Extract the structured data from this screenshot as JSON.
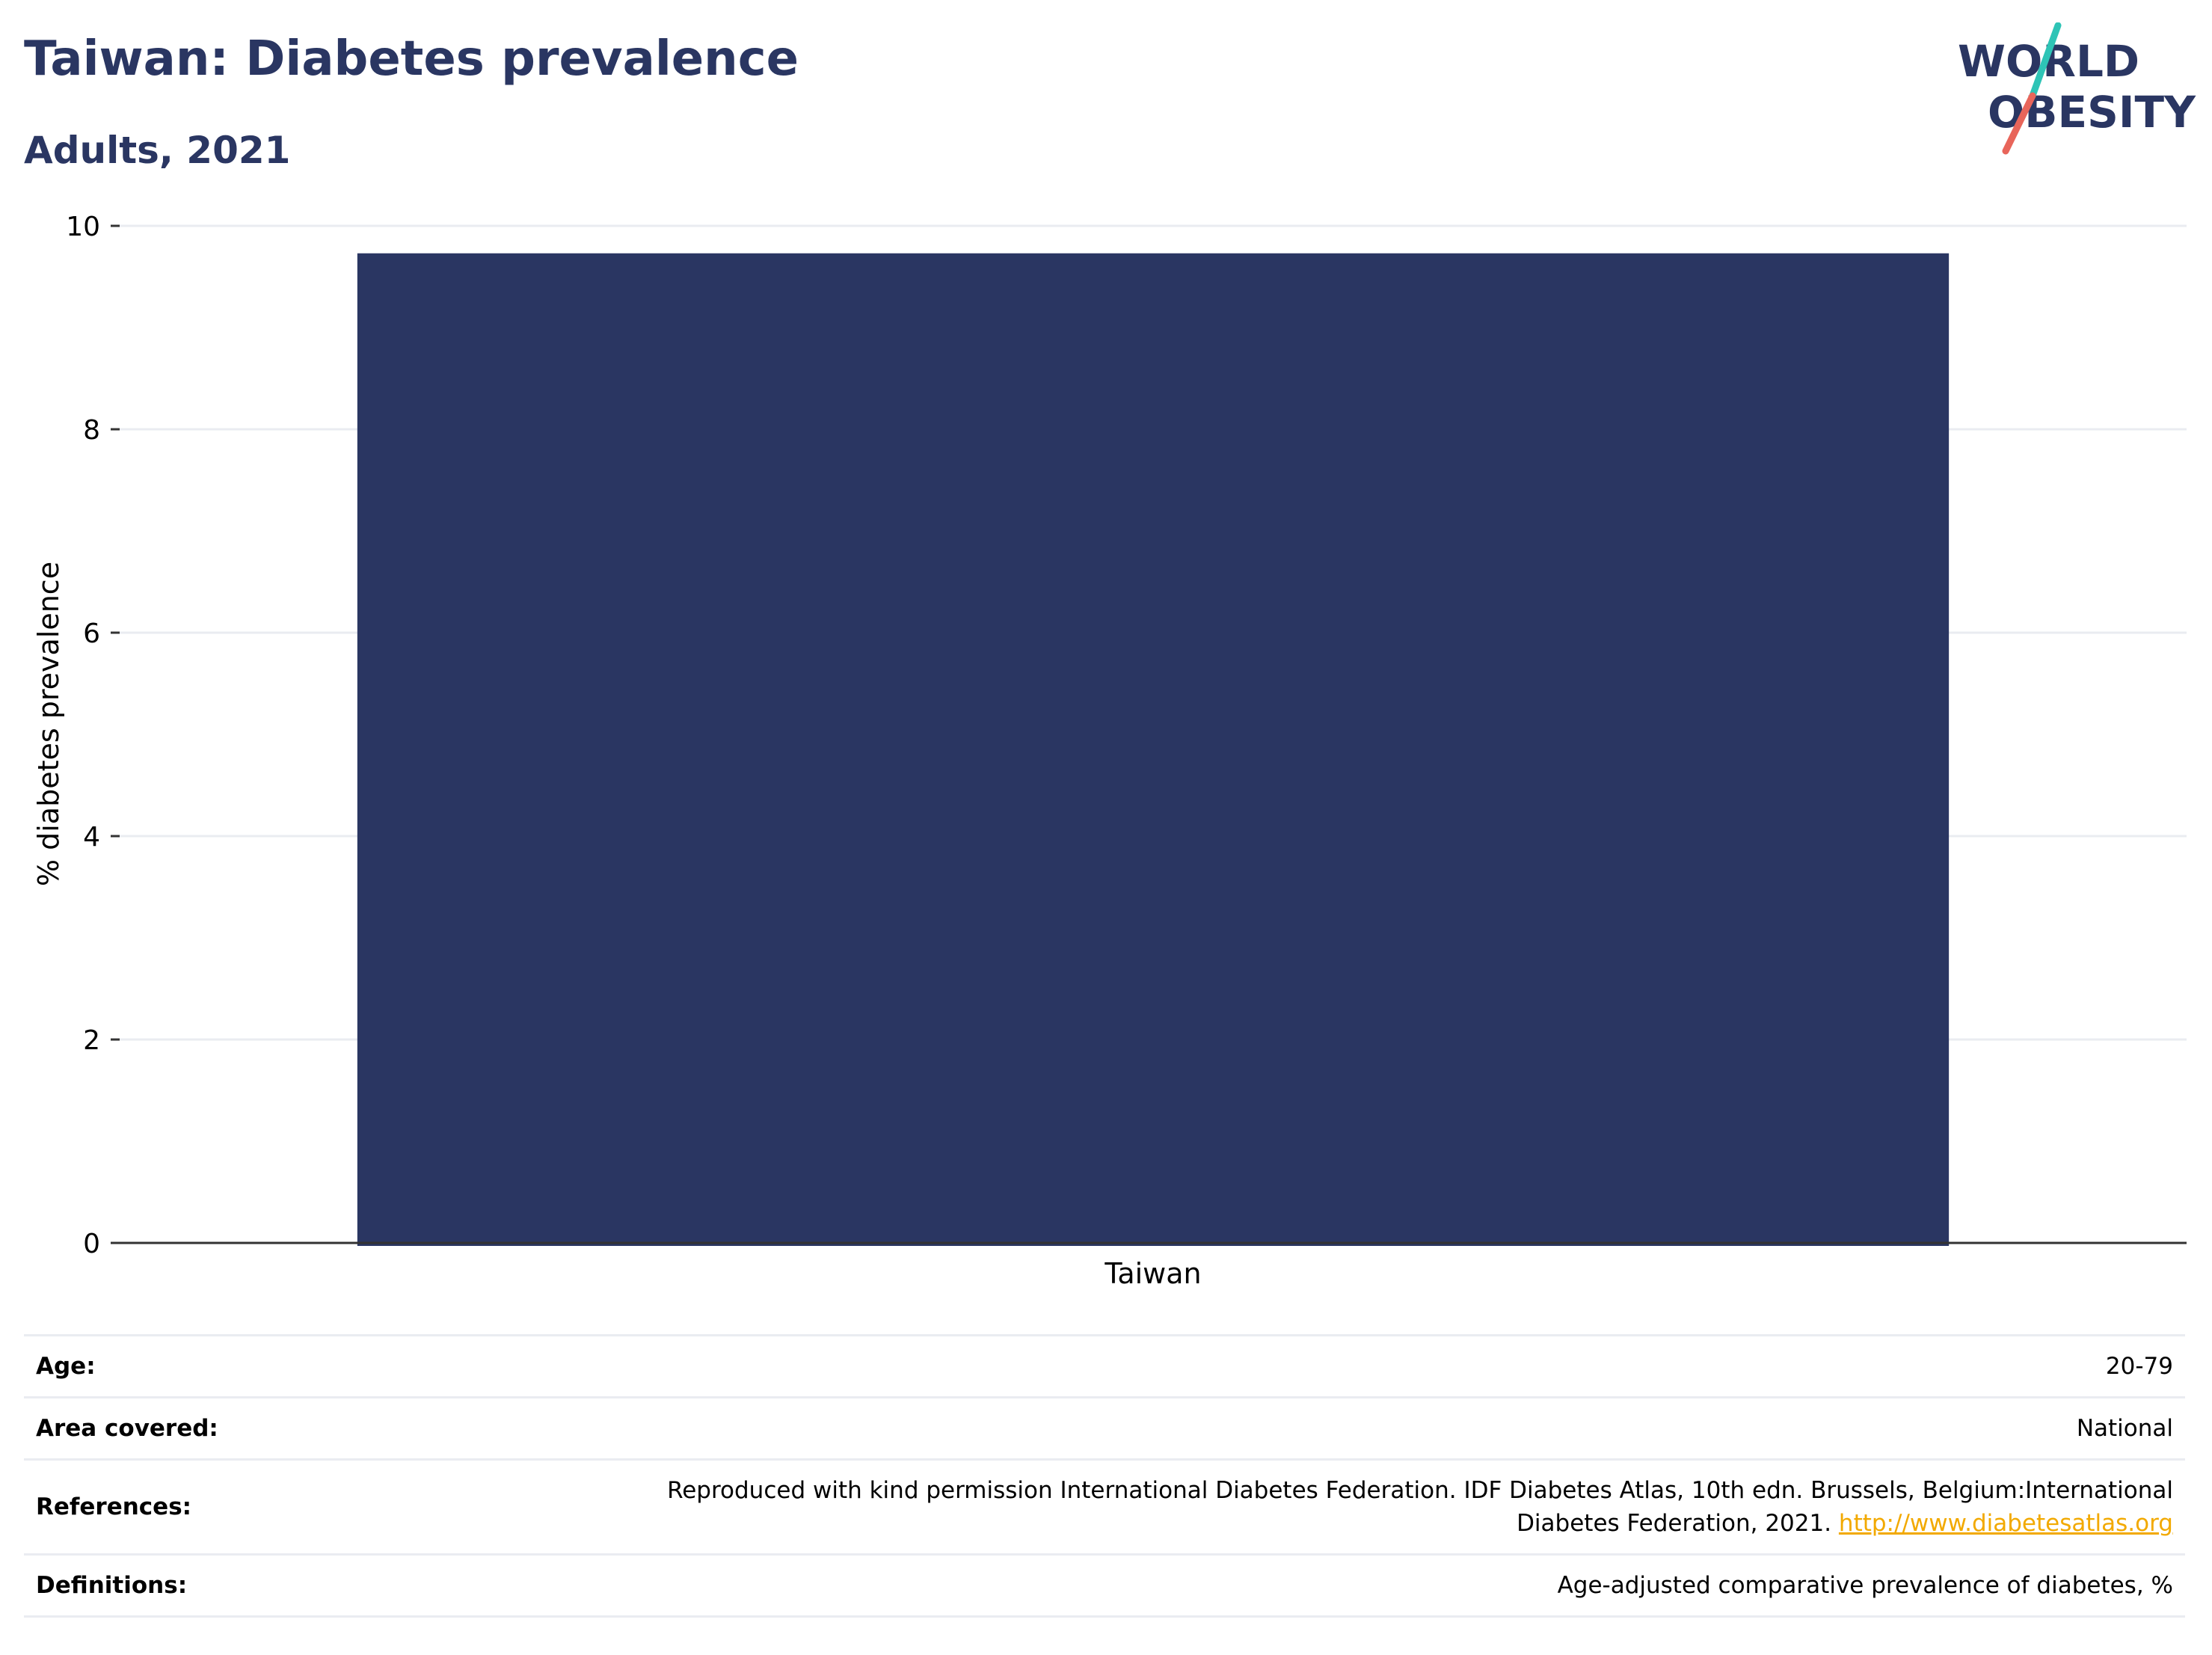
{
  "header": {
    "title": "Taiwan: Diabetes prevalence",
    "subtitle": "Adults, 2021"
  },
  "logo": {
    "line1": "WORLD",
    "line2": "OBESITY",
    "accent_teal": "#2ec4b6",
    "accent_coral": "#e8655a",
    "text_color": "#2a3662"
  },
  "colors": {
    "bar": "#2a3662",
    "title": "#2a3662",
    "grid": "#eaecf1",
    "axis": "#333333",
    "link": "#f2a900"
  },
  "chart_data": {
    "type": "bar",
    "title": "",
    "xlabel": "",
    "ylabel": "% diabetes prevalence",
    "categories": [
      "Taiwan"
    ],
    "values": [
      9.73
    ],
    "ylim": [
      0,
      10
    ],
    "yticks": [
      0,
      2,
      4,
      6,
      8,
      10
    ],
    "grid": true,
    "legend": "none"
  },
  "info": {
    "age_label": "Age:",
    "age_value": "20-79",
    "area_label": "Area covered:",
    "area_value": "National",
    "references_label": "References:",
    "references_text_1": "Reproduced with kind permission International Diabetes Federation.  IDF Diabetes Atlas, 10th edn. Brussels, Belgium:International",
    "references_text_2": "Diabetes Federation, 2021. ",
    "references_link": "http://www.diabetesatlas.org",
    "definitions_label": "Definitions:",
    "definitions_value": "Age-adjusted comparative prevalence of diabetes, %"
  }
}
